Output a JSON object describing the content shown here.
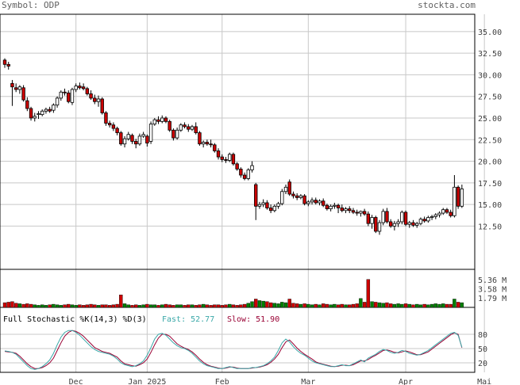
{
  "header": {
    "symbol_label": "Symbol: ODP",
    "source": "stockta.com"
  },
  "colors": {
    "up": "#000000",
    "down": "#cc0000",
    "vol_up": "#008000",
    "vol_down": "#cc0000",
    "fast": "#3aa8a8",
    "slow": "#990033",
    "grid": "#c8c8c8",
    "frame": "#000000"
  },
  "chart_data": [
    {
      "type": "candlestick",
      "title": "Symbol: ODP",
      "x_tick_labels": [
        "Dec",
        "Jan 2025",
        "Feb",
        "Mar",
        "Apr",
        "Mai"
      ],
      "x_tick_index": [
        19,
        38,
        58,
        81,
        107,
        128
      ],
      "y_ticks": [
        12.5,
        15.0,
        17.5,
        20.0,
        22.5,
        25.0,
        27.5,
        30.0,
        32.5,
        35.0
      ],
      "y_tick_labels": [
        "12.50",
        "15.00",
        "17.50",
        "20.00",
        "22.50",
        "25.00",
        "27.50",
        "30.00",
        "32.50",
        "35.00"
      ],
      "ylim": [
        7.5,
        37.0
      ],
      "ohlc": [
        [
          31.7,
          31.9,
          30.8,
          31.2
        ],
        [
          31.2,
          31.5,
          30.6,
          31.0
        ],
        [
          29.0,
          29.4,
          26.4,
          28.6
        ],
        [
          28.5,
          29.0,
          28.0,
          28.3
        ],
        [
          28.3,
          28.8,
          27.8,
          28.6
        ],
        [
          28.5,
          28.8,
          26.9,
          27.1
        ],
        [
          27.0,
          27.4,
          25.8,
          26.1
        ],
        [
          26.1,
          26.3,
          24.7,
          25.0
        ],
        [
          25.0,
          25.6,
          24.6,
          25.2
        ],
        [
          25.4,
          25.8,
          24.9,
          25.5
        ],
        [
          25.4,
          26.0,
          25.2,
          25.8
        ],
        [
          25.8,
          26.2,
          25.5,
          26.0
        ],
        [
          26.0,
          26.3,
          25.6,
          25.8
        ],
        [
          25.9,
          26.7,
          25.6,
          26.5
        ],
        [
          26.5,
          27.5,
          26.2,
          27.3
        ],
        [
          27.3,
          28.2,
          27.0,
          28.0
        ],
        [
          28.0,
          28.4,
          27.6,
          27.9
        ],
        [
          27.9,
          28.2,
          26.7,
          26.9
        ],
        [
          26.8,
          28.5,
          26.5,
          28.3
        ],
        [
          28.3,
          29.0,
          28.0,
          28.7
        ],
        [
          28.7,
          29.1,
          28.3,
          28.5
        ],
        [
          28.6,
          29.0,
          28.2,
          28.4
        ],
        [
          28.4,
          28.6,
          27.6,
          27.8
        ],
        [
          27.8,
          28.2,
          27.1,
          27.3
        ],
        [
          27.3,
          27.7,
          26.6,
          26.9
        ],
        [
          26.9,
          27.6,
          26.3,
          27.2
        ],
        [
          27.2,
          27.4,
          25.4,
          25.6
        ],
        [
          25.6,
          25.8,
          24.1,
          24.4
        ],
        [
          24.4,
          24.7,
          23.9,
          24.2
        ],
        [
          24.2,
          24.5,
          23.5,
          23.8
        ],
        [
          23.8,
          24.0,
          23.0,
          23.3
        ],
        [
          23.3,
          23.5,
          21.8,
          22.0
        ],
        [
          22.0,
          22.9,
          21.6,
          22.6
        ],
        [
          22.6,
          23.4,
          22.4,
          23.1
        ],
        [
          23.0,
          23.2,
          22.0,
          22.3
        ],
        [
          22.3,
          22.6,
          21.5,
          22.0
        ],
        [
          22.0,
          23.2,
          21.8,
          22.9
        ],
        [
          22.9,
          23.4,
          22.7,
          23.1
        ],
        [
          22.9,
          23.1,
          21.7,
          22.1
        ],
        [
          22.3,
          24.6,
          22.0,
          24.3
        ],
        [
          24.3,
          25.0,
          24.1,
          24.8
        ],
        [
          24.8,
          25.2,
          24.3,
          24.6
        ],
        [
          24.6,
          25.3,
          24.4,
          25.0
        ],
        [
          25.0,
          25.2,
          24.4,
          24.6
        ],
        [
          24.6,
          24.8,
          23.4,
          23.6
        ],
        [
          23.6,
          23.8,
          22.4,
          22.7
        ],
        [
          22.7,
          23.9,
          22.5,
          23.6
        ],
        [
          23.6,
          24.4,
          23.4,
          24.2
        ],
        [
          24.2,
          24.5,
          23.8,
          24.0
        ],
        [
          24.0,
          24.3,
          23.4,
          23.7
        ],
        [
          23.7,
          24.2,
          23.5,
          24.0
        ],
        [
          24.0,
          24.5,
          23.1,
          23.3
        ],
        [
          23.3,
          23.5,
          21.8,
          22.0
        ],
        [
          22.0,
          22.4,
          21.6,
          22.2
        ],
        [
          22.2,
          22.5,
          21.8,
          22.0
        ],
        [
          22.0,
          22.5,
          21.6,
          21.9
        ],
        [
          21.9,
          22.1,
          21.0,
          21.2
        ],
        [
          21.2,
          21.5,
          20.2,
          20.5
        ],
        [
          20.5,
          20.8,
          19.9,
          20.2
        ],
        [
          20.2,
          20.5,
          19.8,
          20.1
        ],
        [
          20.1,
          21.0,
          19.9,
          20.8
        ],
        [
          20.8,
          21.0,
          19.5,
          19.7
        ],
        [
          19.7,
          19.9,
          18.9,
          19.1
        ],
        [
          19.1,
          19.3,
          18.1,
          18.4
        ],
        [
          18.4,
          18.7,
          17.8,
          18.0
        ],
        [
          18.0,
          19.2,
          17.8,
          19.0
        ],
        [
          19.0,
          20.0,
          18.7,
          19.5
        ],
        [
          17.3,
          17.5,
          13.2,
          14.8
        ],
        [
          14.8,
          15.3,
          14.5,
          15.0
        ],
        [
          15.0,
          15.6,
          14.7,
          15.2
        ],
        [
          15.2,
          15.5,
          14.4,
          14.6
        ],
        [
          14.6,
          15.0,
          14.0,
          14.3
        ],
        [
          14.3,
          15.0,
          14.1,
          14.8
        ],
        [
          14.8,
          15.3,
          14.5,
          15.1
        ],
        [
          15.1,
          16.8,
          14.9,
          16.5
        ],
        [
          16.5,
          17.3,
          16.2,
          17.0
        ],
        [
          17.6,
          17.9,
          16.0,
          16.2
        ],
        [
          16.2,
          16.5,
          15.7,
          16.0
        ],
        [
          16.0,
          16.3,
          15.5,
          15.8
        ],
        [
          15.8,
          16.2,
          15.6,
          16.0
        ],
        [
          16.0,
          16.2,
          14.9,
          15.1
        ],
        [
          15.1,
          15.5,
          14.8,
          15.3
        ],
        [
          15.3,
          15.8,
          15.0,
          15.5
        ],
        [
          15.5,
          15.8,
          15.0,
          15.2
        ],
        [
          15.2,
          15.6,
          14.9,
          15.4
        ],
        [
          15.4,
          15.7,
          14.7,
          14.9
        ],
        [
          14.9,
          15.1,
          14.3,
          14.5
        ],
        [
          14.5,
          15.0,
          14.2,
          14.8
        ],
        [
          14.8,
          15.2,
          14.5,
          14.9
        ],
        [
          14.9,
          15.1,
          14.0,
          14.6
        ],
        [
          14.6,
          15.0,
          14.1,
          14.3
        ],
        [
          14.3,
          14.7,
          14.0,
          14.5
        ],
        [
          14.5,
          14.8,
          14.0,
          14.3
        ],
        [
          14.3,
          14.6,
          13.9,
          14.1
        ],
        [
          14.1,
          14.4,
          13.7,
          14.0
        ],
        [
          14.0,
          14.3,
          13.6,
          14.2
        ],
        [
          14.2,
          14.5,
          13.7,
          13.9
        ],
        [
          13.9,
          14.2,
          12.5,
          12.8
        ],
        [
          12.8,
          13.8,
          12.2,
          13.5
        ],
        [
          13.5,
          13.7,
          11.7,
          11.9
        ],
        [
          11.9,
          13.2,
          11.5,
          12.9
        ],
        [
          12.9,
          14.5,
          12.6,
          14.2
        ],
        [
          14.2,
          14.6,
          12.8,
          13.0
        ],
        [
          13.0,
          13.3,
          12.3,
          12.5
        ],
        [
          12.5,
          13.1,
          12.0,
          12.8
        ],
        [
          12.8,
          13.3,
          12.4,
          13.0
        ],
        [
          13.0,
          14.3,
          12.7,
          14.1
        ],
        [
          14.1,
          14.3,
          12.5,
          12.7
        ],
        [
          12.7,
          13.1,
          12.3,
          12.9
        ],
        [
          12.9,
          13.2,
          12.4,
          12.6
        ],
        [
          12.6,
          13.0,
          12.3,
          12.8
        ],
        [
          12.8,
          13.5,
          12.6,
          13.3
        ],
        [
          13.3,
          13.6,
          12.9,
          13.1
        ],
        [
          13.1,
          13.7,
          12.9,
          13.5
        ],
        [
          13.5,
          13.8,
          13.2,
          13.6
        ],
        [
          13.6,
          14.0,
          13.3,
          13.8
        ],
        [
          13.8,
          14.2,
          13.5,
          14.0
        ],
        [
          14.0,
          14.6,
          13.8,
          14.4
        ],
        [
          14.4,
          14.6,
          13.9,
          14.1
        ],
        [
          14.1,
          14.4,
          13.5,
          13.7
        ],
        [
          13.7,
          18.4,
          13.5,
          17.0
        ],
        [
          17.0,
          17.2,
          14.5,
          14.8
        ],
        [
          14.8,
          17.3,
          14.6,
          16.8
        ]
      ],
      "volume_label_values": [
        5.36,
        3.58,
        1.79
      ],
      "volume_label_text": [
        "5.36 M",
        "3.58 M",
        "1.79 M"
      ],
      "volume_ylim": [
        0,
        7.0
      ],
      "volume": [
        0.9,
        1.0,
        1.1,
        0.8,
        0.7,
        0.6,
        0.7,
        0.6,
        0.5,
        0.4,
        0.5,
        0.4,
        0.5,
        0.6,
        0.5,
        0.4,
        0.5,
        0.6,
        0.5,
        0.4,
        0.5,
        0.4,
        0.5,
        0.6,
        0.5,
        0.4,
        0.5,
        0.5,
        0.4,
        0.5,
        0.6,
        2.4,
        0.7,
        0.5,
        0.4,
        0.5,
        0.4,
        0.5,
        0.6,
        0.5,
        0.5,
        0.4,
        0.5,
        0.6,
        0.5,
        0.4,
        0.5,
        0.5,
        0.4,
        0.5,
        0.5,
        0.4,
        0.5,
        0.6,
        0.5,
        0.4,
        0.5,
        0.5,
        0.4,
        0.5,
        0.6,
        0.5,
        0.4,
        0.5,
        0.6,
        0.8,
        1.1,
        1.6,
        1.3,
        1.2,
        1.1,
        0.9,
        0.8,
        0.7,
        1.0,
        0.9,
        1.6,
        0.8,
        0.7,
        0.6,
        0.7,
        0.6,
        0.5,
        0.6,
        0.5,
        0.7,
        0.6,
        0.5,
        0.6,
        0.5,
        0.6,
        0.5,
        0.5,
        0.6,
        0.7,
        1.7,
        1.0,
        5.36,
        1.1,
        1.0,
        0.9,
        0.8,
        0.9,
        0.7,
        0.6,
        0.7,
        0.6,
        0.7,
        0.6,
        0.5,
        0.6,
        0.5,
        0.6,
        0.5,
        0.6,
        0.7,
        0.6,
        0.7,
        0.6,
        0.6,
        1.6,
        1.0,
        0.9
      ],
      "indicator": {
        "label": "Full Stochastic %K(14,3) %D(3)",
        "fast_label": "Fast: 52.77",
        "slow_label": "Slow: 51.90",
        "y_ticks": [
          20,
          50,
          80
        ],
        "ylim": [
          0,
          100
        ],
        "fast": [
          45,
          44,
          42,
          38,
          30,
          22,
          14,
          8,
          6,
          8,
          12,
          18,
          26,
          40,
          58,
          74,
          84,
          88,
          88,
          84,
          78,
          70,
          62,
          54,
          48,
          44,
          42,
          40,
          38,
          34,
          28,
          20,
          16,
          14,
          12,
          14,
          18,
          24,
          36,
          52,
          70,
          80,
          82,
          78,
          70,
          62,
          56,
          52,
          50,
          46,
          40,
          32,
          24,
          18,
          14,
          12,
          10,
          8,
          8,
          10,
          12,
          10,
          8,
          8,
          8,
          8,
          10,
          10,
          12,
          14,
          18,
          24,
          32,
          46,
          62,
          70,
          64,
          54,
          46,
          40,
          36,
          30,
          24,
          20,
          18,
          16,
          14,
          12,
          12,
          14,
          16,
          14,
          14,
          18,
          22,
          26,
          22,
          30,
          34,
          38,
          44,
          48,
          46,
          42,
          40,
          42,
          46,
          44,
          40,
          38,
          36,
          38,
          42,
          46,
          52,
          58,
          64,
          70,
          76,
          82,
          84,
          78,
          52.77
        ],
        "slow": [
          44,
          43,
          42,
          40,
          34,
          26,
          18,
          12,
          8,
          8,
          10,
          14,
          20,
          30,
          46,
          62,
          76,
          84,
          88,
          86,
          82,
          76,
          68,
          60,
          52,
          48,
          44,
          42,
          40,
          36,
          32,
          24,
          18,
          16,
          14,
          13,
          16,
          20,
          28,
          42,
          58,
          72,
          80,
          80,
          76,
          68,
          60,
          55,
          51,
          48,
          43,
          36,
          28,
          21,
          16,
          13,
          11,
          9,
          8,
          9,
          11,
          11,
          9,
          8,
          8,
          8,
          9,
          10,
          11,
          13,
          16,
          21,
          28,
          38,
          52,
          64,
          68,
          60,
          51,
          44,
          38,
          33,
          28,
          22,
          19,
          17,
          15,
          13,
          12,
          13,
          15,
          15,
          14,
          16,
          20,
          24,
          24,
          27,
          32,
          36,
          41,
          46,
          47,
          45,
          42,
          41,
          43,
          45,
          43,
          40,
          37,
          37,
          40,
          43,
          49,
          55,
          61,
          67,
          73,
          79,
          83,
          80,
          51.9
        ]
      }
    }
  ]
}
